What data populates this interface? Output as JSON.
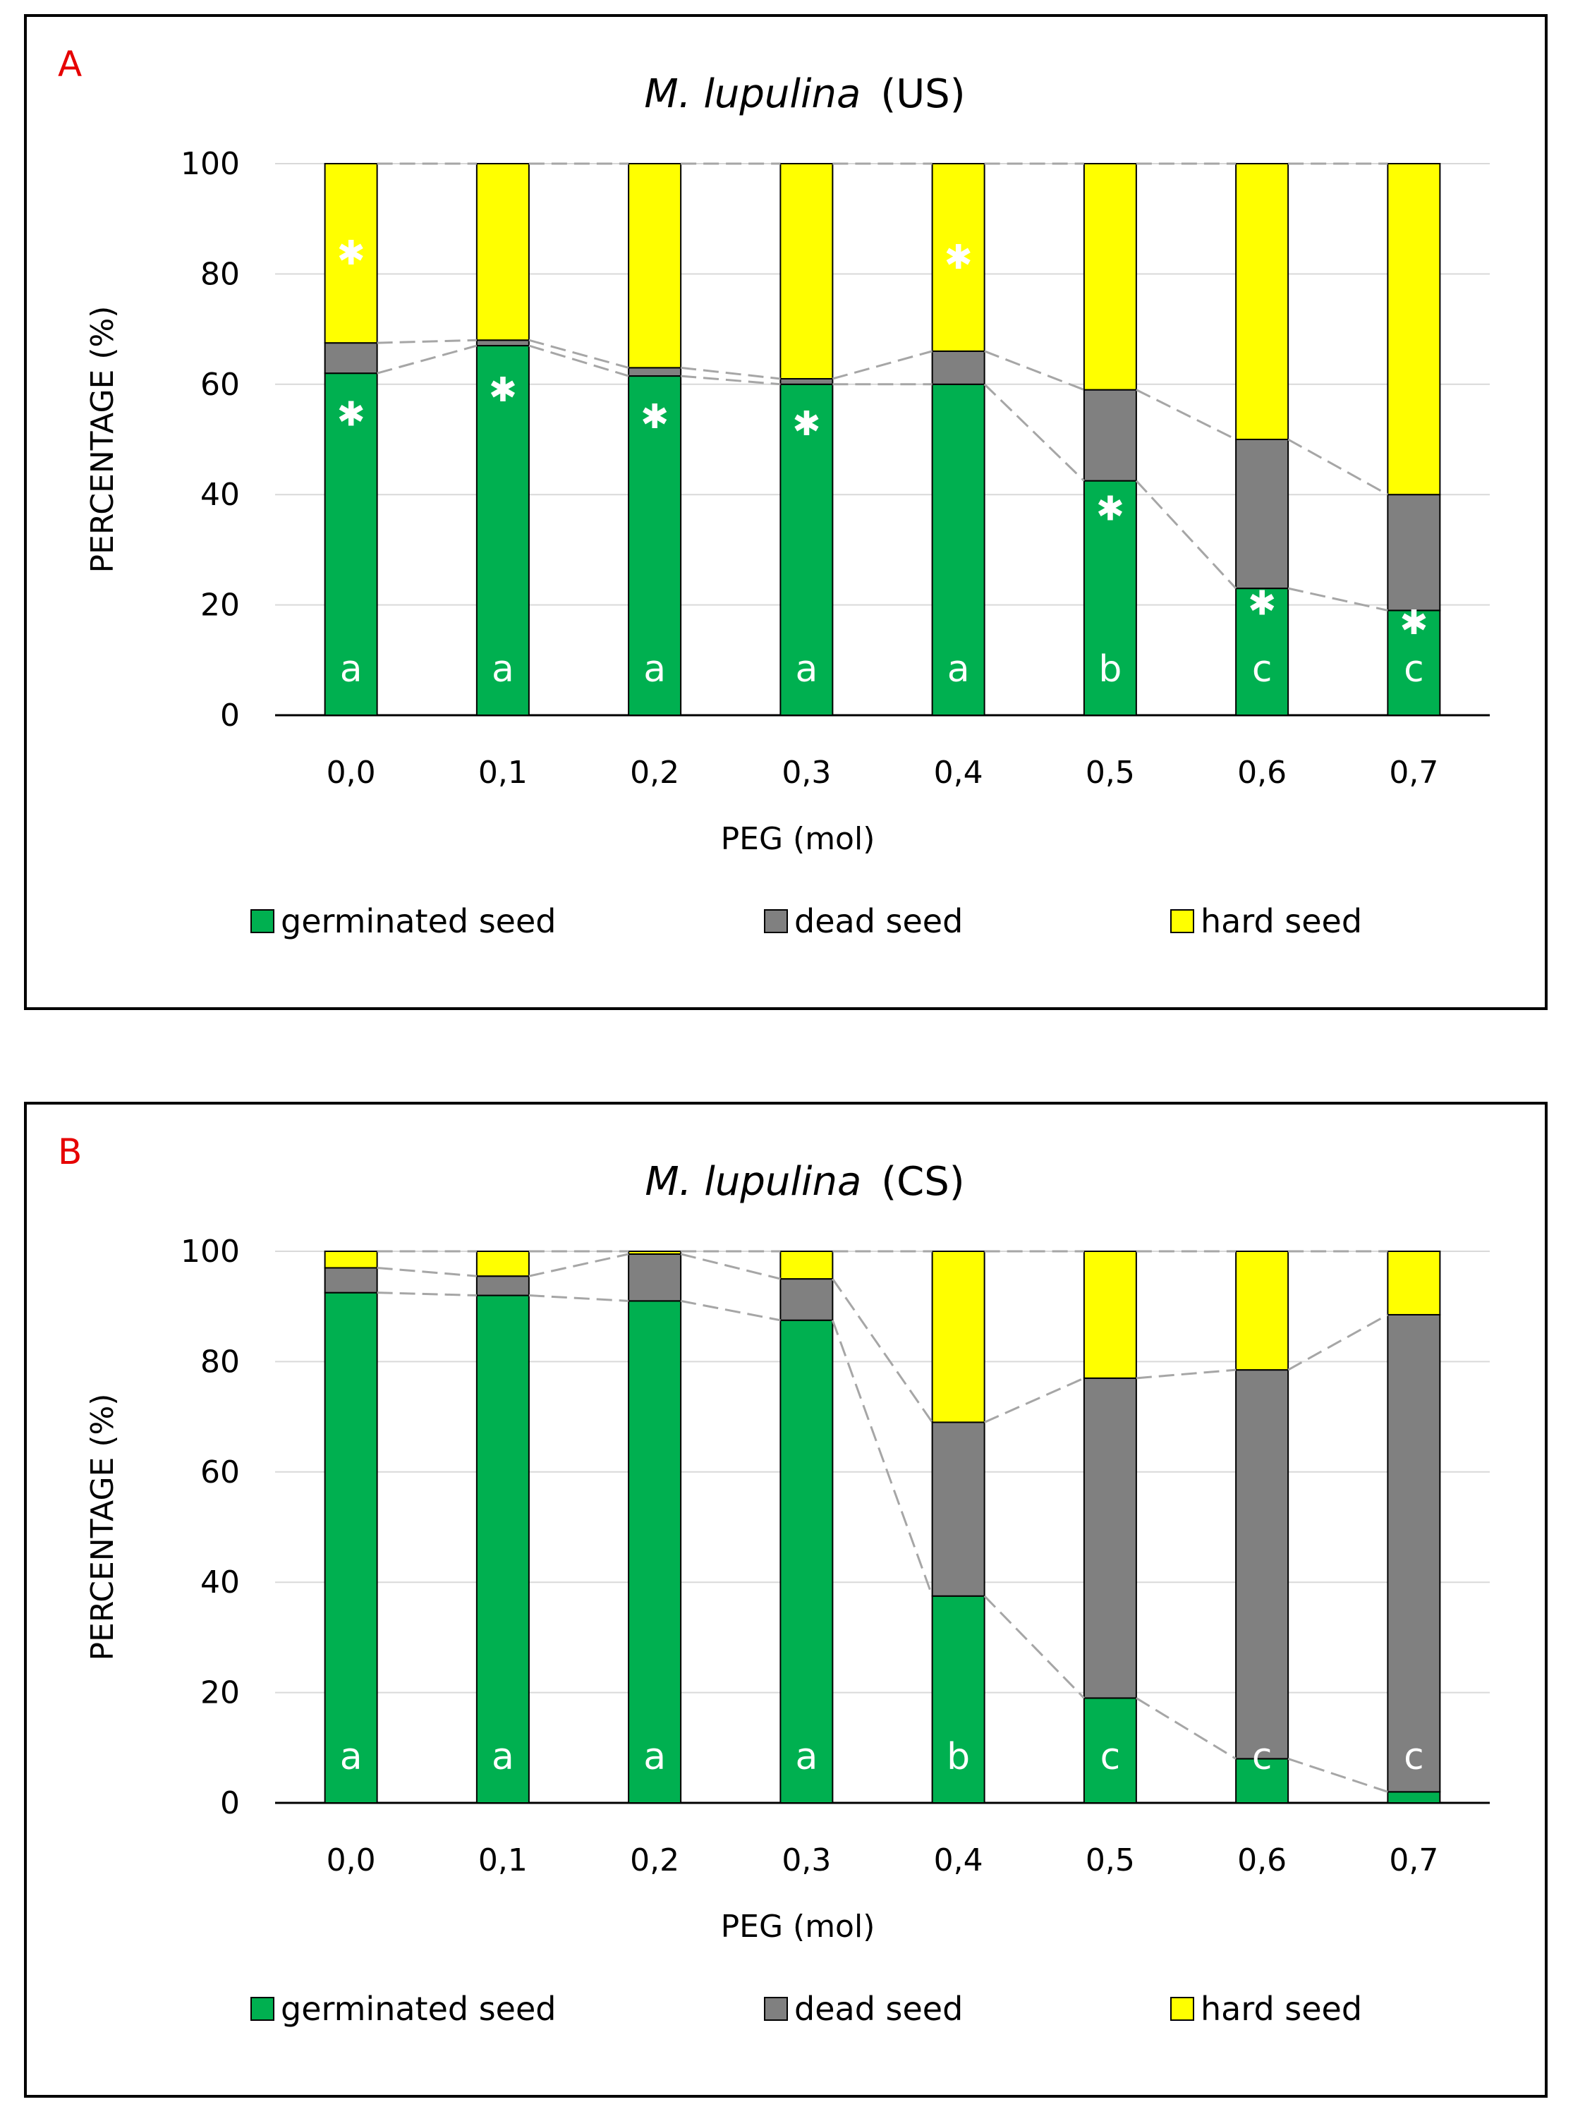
{
  "colors": {
    "germinated": "#00b050",
    "dead": "#808080",
    "hard": "#ffff00",
    "grid": "#d9d9d9",
    "panel_label": "#e60000"
  },
  "chart_data": [
    {
      "type": "bar",
      "stacked": true,
      "panel_label": "A",
      "title_species": "M. lupulina",
      "title_suffix": "(US)",
      "xlabel": "PEG (mol)",
      "ylabel": "PERCENTAGE (%)",
      "ylim": [
        0,
        100
      ],
      "yticks": [
        "0",
        "20",
        "40",
        "60",
        "80",
        "100"
      ],
      "categories": [
        "0,0",
        "0,1",
        "0,2",
        "0,3",
        "0,4",
        "0,5",
        "0,6",
        "0,7"
      ],
      "series": [
        {
          "name": "germinated seed",
          "key": "germinated",
          "values": [
            62,
            67,
            61.5,
            60,
            60,
            42.5,
            23,
            19
          ]
        },
        {
          "name": "dead seed",
          "key": "dead",
          "values": [
            5.5,
            1,
            1.5,
            1,
            6,
            16.5,
            27,
            21
          ]
        },
        {
          "name": "hard seed",
          "key": "hard",
          "values": [
            32.5,
            32,
            37,
            39,
            34,
            41,
            50,
            60
          ]
        }
      ],
      "letters": [
        "a",
        "a",
        "a",
        "a",
        "a",
        "b",
        "c",
        "c"
      ],
      "germ_star": [
        true,
        true,
        true,
        true,
        false,
        true,
        true,
        true
      ],
      "hard_star": [
        true,
        false,
        false,
        false,
        true,
        false,
        false,
        false
      ],
      "legend": [
        "germinated seed",
        "dead seed",
        "hard seed"
      ]
    },
    {
      "type": "bar",
      "stacked": true,
      "panel_label": "B",
      "title_species": "M. lupulina",
      "title_suffix": "(CS)",
      "xlabel": "PEG (mol)",
      "ylabel": "PERCENTAGE (%)",
      "ylim": [
        0,
        100
      ],
      "yticks": [
        "0",
        "20",
        "40",
        "60",
        "80",
        "100"
      ],
      "categories": [
        "0,0",
        "0,1",
        "0,2",
        "0,3",
        "0,4",
        "0,5",
        "0,6",
        "0,7"
      ],
      "series": [
        {
          "name": "germinated seed",
          "key": "germinated",
          "values": [
            92.5,
            92,
            91,
            87.5,
            37.5,
            19,
            8,
            2
          ]
        },
        {
          "name": "dead seed",
          "key": "dead",
          "values": [
            4.5,
            3.5,
            8.5,
            7.5,
            31.5,
            58,
            70.5,
            86.5
          ]
        },
        {
          "name": "hard seed",
          "key": "hard",
          "values": [
            3,
            4.5,
            0.5,
            5,
            31,
            23,
            21.5,
            11.5
          ]
        }
      ],
      "letters": [
        "a",
        "a",
        "a",
        "a",
        "b",
        "c",
        "c",
        "c"
      ],
      "germ_star": [
        false,
        false,
        false,
        false,
        false,
        false,
        false,
        false
      ],
      "hard_star": [
        false,
        false,
        false,
        false,
        false,
        false,
        false,
        false
      ],
      "legend": [
        "germinated seed",
        "dead seed",
        "hard seed"
      ]
    }
  ]
}
